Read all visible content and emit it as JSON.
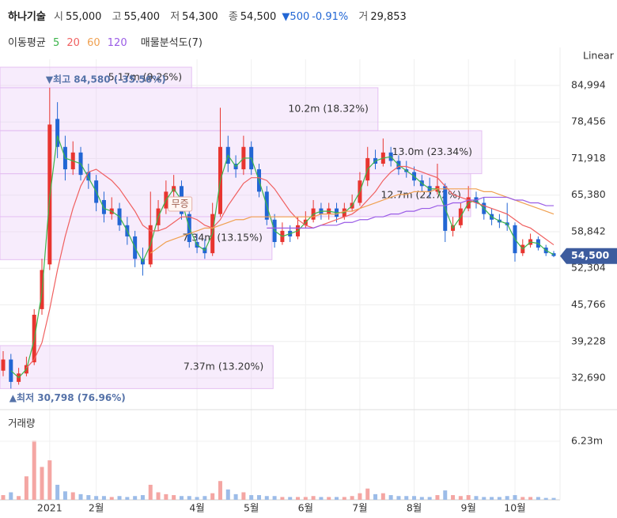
{
  "header": {
    "name": "하나기술",
    "items": [
      {
        "label": "시",
        "value": "55,000"
      },
      {
        "label": "고",
        "value": "55,400"
      },
      {
        "label": "저",
        "value": "54,300"
      },
      {
        "label": "종",
        "value": "54,500"
      }
    ],
    "change": "▼500",
    "change_pct": "-0.91%",
    "volume_label": "거",
    "volume": "29,853"
  },
  "chart_data": [
    {
      "type": "candlestick",
      "scale_label": "Linear",
      "categories": [
        null,
        null,
        null,
        null,
        null,
        null,
        "2021",
        null,
        null,
        null,
        null,
        null,
        "2월",
        null,
        null,
        null,
        null,
        null,
        null,
        null,
        null,
        null,
        null,
        null,
        null,
        "4월",
        null,
        null,
        null,
        null,
        null,
        null,
        "5월",
        null,
        null,
        null,
        null,
        null,
        null,
        "6월",
        null,
        null,
        null,
        null,
        null,
        null,
        "7월",
        null,
        null,
        null,
        null,
        null,
        null,
        "8월",
        null,
        null,
        null,
        null,
        null,
        null,
        "9월",
        null,
        null,
        null,
        null,
        null,
        "10월",
        null,
        null,
        null,
        null,
        null
      ],
      "open": [
        34000,
        36000,
        32000,
        33500,
        35500,
        45000,
        53000,
        79000,
        74000,
        70000,
        73000,
        69500,
        68000,
        64500,
        62000,
        63000,
        60000,
        58000,
        54000,
        53000,
        60000,
        63000,
        66000,
        67000,
        62000,
        57000,
        56000,
        55000,
        62000,
        74000,
        71000,
        70000,
        74000,
        70000,
        66000,
        61000,
        57000,
        59000,
        58000,
        60000,
        61000,
        63000,
        62000,
        63000,
        61500,
        63000,
        64000,
        68000,
        72000,
        71000,
        73000,
        71500,
        70000,
        69500,
        68000,
        67000,
        66000,
        67000,
        59000,
        60000,
        63000,
        65000,
        64000,
        62000,
        61000,
        60500,
        60000,
        55000,
        56500,
        57500,
        56000,
        55000
      ],
      "high": [
        37500,
        37000,
        34500,
        36500,
        45000,
        54000,
        84580,
        82000,
        76000,
        75000,
        74000,
        71000,
        69000,
        66000,
        65000,
        64000,
        61500,
        59000,
        56000,
        66000,
        64500,
        68000,
        69000,
        68000,
        63000,
        58500,
        57500,
        64000,
        81000,
        76000,
        72500,
        76000,
        75000,
        71000,
        67000,
        62000,
        60500,
        60000,
        61500,
        62500,
        64500,
        64000,
        64000,
        64000,
        64000,
        65500,
        69500,
        74000,
        73500,
        75500,
        74000,
        72500,
        71500,
        70500,
        69000,
        68500,
        71000,
        67500,
        61500,
        64000,
        67000,
        66000,
        65000,
        63000,
        62000,
        64000,
        60500,
        57500,
        58500,
        58000,
        56500,
        55400
      ],
      "low": [
        33000,
        30798,
        31500,
        33000,
        35000,
        44000,
        52000,
        72000,
        68000,
        69000,
        68000,
        66500,
        62500,
        60500,
        61000,
        59000,
        56500,
        52500,
        51000,
        52500,
        59000,
        62000,
        65000,
        61000,
        56000,
        55000,
        54000,
        54500,
        61500,
        69500,
        68500,
        69000,
        69000,
        65000,
        60000,
        56000,
        56500,
        57000,
        57500,
        59500,
        60500,
        61000,
        61000,
        60500,
        61000,
        62500,
        63500,
        67000,
        70000,
        70500,
        70500,
        69000,
        68500,
        67000,
        66000,
        65000,
        65500,
        57000,
        58000,
        59500,
        62500,
        63000,
        61000,
        60000,
        59500,
        59000,
        53500,
        54500,
        56000,
        55500,
        54500,
        54300
      ],
      "close": [
        36000,
        32000,
        33500,
        35000,
        44000,
        52000,
        78000,
        74000,
        70000,
        73000,
        69000,
        68000,
        64000,
        62000,
        63000,
        60000,
        58000,
        54000,
        53000,
        60000,
        63000,
        66000,
        67000,
        62000,
        57000,
        56000,
        55000,
        62000,
        74000,
        71000,
        70000,
        74000,
        70000,
        66000,
        61000,
        57000,
        59000,
        58000,
        60000,
        61000,
        63000,
        62000,
        63000,
        61500,
        63000,
        64000,
        68000,
        72000,
        71000,
        73000,
        71500,
        70000,
        69500,
        68000,
        67000,
        66000,
        67000,
        59000,
        60000,
        63000,
        65000,
        64000,
        62000,
        61000,
        60500,
        60000,
        55000,
        56500,
        57500,
        56000,
        55000,
        54500
      ],
      "up_color": "#e8352f",
      "down_color": "#2266d4",
      "ylim": [
        30287,
        88245
      ],
      "yticks": [
        {
          "value": 32690,
          "label": "32,690"
        },
        {
          "value": 39228,
          "label": "39,228"
        },
        {
          "value": 45766,
          "label": "45,766"
        },
        {
          "value": 52304,
          "label": "52,304"
        },
        {
          "value": 58842,
          "label": "58,842"
        },
        {
          "value": 65380,
          "label": "65,380"
        },
        {
          "value": 71918,
          "label": "71,918"
        },
        {
          "value": 78456,
          "label": "78,456"
        },
        {
          "value": 84994,
          "label": "84,994"
        }
      ],
      "grid": true,
      "moving_averages": {
        "title": "이동평균",
        "series": [
          {
            "name": "5",
            "color": "#3cb44b",
            "values": [
              null,
              34000,
              32750,
              34250,
              39500,
              48000,
              65000,
              76000,
              72000,
              71500,
              71000,
              68500,
              66000,
              63000,
              62500,
              61500,
              59000,
              56000,
              53500,
              56500,
              61500,
              64500,
              66500,
              64500,
              59500,
              56500,
              55500,
              58500,
              68000,
              72500,
              70500,
              72000,
              72000,
              68000,
              63500,
              59000,
              58000,
              58500,
              59000,
              60500,
              62000,
              62500,
              62500,
              62250,
              62250,
              63500,
              66000,
              70000,
              71500,
              72000,
              72250,
              70750,
              69750,
              68750,
              67500,
              66500,
              66500,
              63000,
              59500,
              61500,
              64000,
              64500,
              63000,
              61500,
              60750,
              60250,
              57500,
              55750,
              57000,
              56750,
              55500,
              54750
            ]
          },
          {
            "name": "20",
            "color": "#f06060",
            "values": [
              null,
              null,
              null,
              34500,
              36000,
              39000,
              45000,
              52000,
              58000,
              63000,
              67000,
              69500,
              70000,
              69000,
              68000,
              66500,
              64500,
              62500,
              60000,
              59000,
              59000,
              59500,
              60500,
              61500,
              61500,
              61000,
              60000,
              59500,
              61000,
              63500,
              65500,
              67500,
              68500,
              68500,
              68000,
              66500,
              64500,
              62500,
              61000,
              60000,
              59500,
              60000,
              60500,
              61000,
              61500,
              62000,
              63000,
              64500,
              66000,
              68000,
              69500,
              70500,
              70500,
              70000,
              69500,
              69000,
              68500,
              67000,
              65500,
              65000,
              64500,
              64000,
              63500,
              63000,
              62500,
              62000,
              61000,
              60000,
              59500,
              58500,
              57500,
              56500
            ]
          },
          {
            "name": "60",
            "color": "#f0a050",
            "values": [
              null,
              null,
              null,
              null,
              null,
              null,
              null,
              null,
              null,
              null,
              null,
              null,
              null,
              null,
              null,
              null,
              null,
              null,
              null,
              55000,
              56000,
              57000,
              57500,
              58000,
              58500,
              59000,
              59500,
              59500,
              60000,
              60500,
              61000,
              61000,
              61500,
              61500,
              61500,
              61500,
              61500,
              61500,
              61500,
              61500,
              61500,
              62000,
              62000,
              62000,
              62500,
              62500,
              63000,
              63500,
              64000,
              64500,
              65000,
              65500,
              65500,
              66000,
              66000,
              66000,
              66500,
              66500,
              66500,
              66500,
              66500,
              66500,
              66000,
              66000,
              65500,
              65000,
              64500,
              64000,
              63500,
              63000,
              62500,
              62000
            ]
          },
          {
            "name": "120",
            "color": "#9a5ce6",
            "values": [
              null,
              null,
              null,
              null,
              null,
              null,
              null,
              null,
              null,
              null,
              null,
              null,
              null,
              null,
              null,
              null,
              null,
              null,
              null,
              null,
              null,
              null,
              null,
              null,
              null,
              null,
              null,
              null,
              null,
              null,
              null,
              null,
              null,
              null,
              59500,
              59500,
              59500,
              59500,
              59500,
              59500,
              59500,
              60000,
              60000,
              60000,
              60500,
              60500,
              61000,
              61000,
              61500,
              61500,
              62000,
              62000,
              62500,
              62500,
              63000,
              63000,
              63500,
              63500,
              64000,
              64000,
              64500,
              64500,
              65000,
              65000,
              65000,
              65000,
              64500,
              64500,
              64000,
              64000,
              63500,
              63500
            ]
          }
        ]
      },
      "volume_profile": {
        "title": "매물분석도(7)",
        "bands": [
          {
            "low": 30798,
            "high": 38481,
            "volume": 7.37,
            "label": "7.37m (13.20%)"
          },
          {
            "low": 53847,
            "high": 61530,
            "volume": 7.34,
            "label": "7.34m (13.15%)"
          },
          {
            "low": 61530,
            "high": 69213,
            "volume": 12.7,
            "label": "12.7m (22.72%)"
          },
          {
            "low": 69213,
            "high": 76896,
            "volume": 13.0,
            "label": "13.0m (23.34%)"
          },
          {
            "low": 76896,
            "high": 84580,
            "volume": 10.2,
            "label": "10.2m (18.32%)"
          },
          {
            "low": 84580,
            "high": 88245,
            "volume": 5.17,
            "label": "5.17m (9.26%)"
          }
        ]
      },
      "high_label": "▼최고 84,580 (-35.56%)",
      "low_label": "▲최저 30,798 (76.96%)",
      "event_label": "무증",
      "last_price": {
        "value": 54500,
        "label": "54,500"
      }
    },
    {
      "type": "bar",
      "title": "거래량",
      "values": [
        0.5,
        0.8,
        0.4,
        2.5,
        6.3,
        3.5,
        4.2,
        1.6,
        0.9,
        0.8,
        0.6,
        0.5,
        0.4,
        0.4,
        0.3,
        0.4,
        0.3,
        0.4,
        0.5,
        1.6,
        0.8,
        0.6,
        0.5,
        0.4,
        0.4,
        0.3,
        0.4,
        0.7,
        2.0,
        1.1,
        0.6,
        0.8,
        0.5,
        0.5,
        0.4,
        0.4,
        0.3,
        0.3,
        0.3,
        0.3,
        0.4,
        0.3,
        0.3,
        0.3,
        0.3,
        0.4,
        0.7,
        1.2,
        0.6,
        0.7,
        0.5,
        0.4,
        0.4,
        0.4,
        0.3,
        0.3,
        0.5,
        1.0,
        0.5,
        0.4,
        0.5,
        0.4,
        0.3,
        0.3,
        0.3,
        0.4,
        0.5,
        0.3,
        0.3,
        0.3,
        0.2,
        0.2
      ],
      "ylim": [
        0,
        9.26
      ],
      "yticks": [
        {
          "value": 6.23,
          "label": "6.23m"
        }
      ]
    }
  ]
}
